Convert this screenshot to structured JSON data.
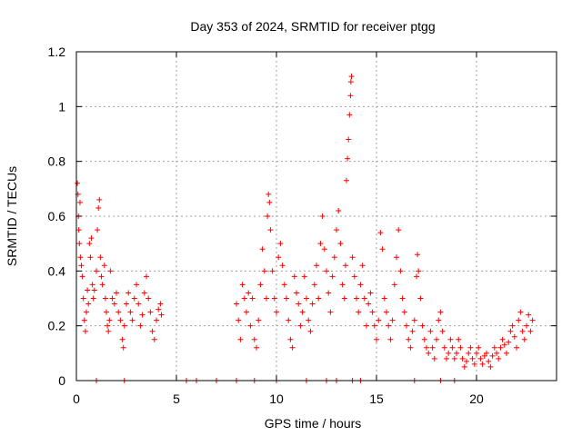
{
  "chart_data": {
    "type": "scatter",
    "title": "Day 353 of 2024, SRMTID for receiver ptgg",
    "xlabel": "GPS time / hours",
    "ylabel": "SRMTID / TECUs",
    "xlim": [
      0,
      24
    ],
    "ylim": [
      0,
      1.2
    ],
    "xticks": [
      0,
      5,
      10,
      15,
      20
    ],
    "yticks": [
      0,
      0.2,
      0.4,
      0.6,
      0.8,
      1,
      1.2
    ],
    "xtick_labels": [
      "0",
      "5",
      "10",
      "15",
      "20"
    ],
    "ytick_labels": [
      "0",
      "0.2",
      "0.4",
      "0.6",
      "0.8",
      "1",
      "1.2"
    ],
    "grid": true,
    "marker": "+",
    "color": "#ff0000",
    "series": [
      {
        "name": "SRMTID",
        "points": [
          [
            0.05,
            0.72
          ],
          [
            0.08,
            0.68
          ],
          [
            0.1,
            0.6
          ],
          [
            0.12,
            0.55
          ],
          [
            0.15,
            0.5
          ],
          [
            0.18,
            0.65
          ],
          [
            0.2,
            0.45
          ],
          [
            0.25,
            0.42
          ],
          [
            0.3,
            0.38
          ],
          [
            0.35,
            0.3
          ],
          [
            0.4,
            0.22
          ],
          [
            0.45,
            0.18
          ],
          [
            0.5,
            0.25
          ],
          [
            0.55,
            0.33
          ],
          [
            0.6,
            0.28
          ],
          [
            0.65,
            0.5
          ],
          [
            0.7,
            0.45
          ],
          [
            0.75,
            0.52
          ],
          [
            0.8,
            0.35
          ],
          [
            0.85,
            0.3
          ],
          [
            0.9,
            0.33
          ],
          [
            1.0,
            0.4
          ],
          [
            1.05,
            0.55
          ],
          [
            1.1,
            0.63
          ],
          [
            1.15,
            0.66
          ],
          [
            1.2,
            0.45
          ],
          [
            1.25,
            0.38
          ],
          [
            1.3,
            0.35
          ],
          [
            1.4,
            0.42
          ],
          [
            1.45,
            0.3
          ],
          [
            1.5,
            0.25
          ],
          [
            1.55,
            0.2
          ],
          [
            1.6,
            0.18
          ],
          [
            1.65,
            0.22
          ],
          [
            1.7,
            0.4
          ],
          [
            1.8,
            0.3
          ],
          [
            1.9,
            0.28
          ],
          [
            2.0,
            0.32
          ],
          [
            2.1,
            0.25
          ],
          [
            2.2,
            0.22
          ],
          [
            2.3,
            0.15
          ],
          [
            2.35,
            0.12
          ],
          [
            2.4,
            0.2
          ],
          [
            2.5,
            0.28
          ],
          [
            2.6,
            0.32
          ],
          [
            2.7,
            0.25
          ],
          [
            2.8,
            0.22
          ],
          [
            2.9,
            0.3
          ],
          [
            3.0,
            0.35
          ],
          [
            3.1,
            0.28
          ],
          [
            3.2,
            0.2
          ],
          [
            3.3,
            0.24
          ],
          [
            3.4,
            0.32
          ],
          [
            3.5,
            0.38
          ],
          [
            3.6,
            0.3
          ],
          [
            3.7,
            0.25
          ],
          [
            3.8,
            0.18
          ],
          [
            3.9,
            0.15
          ],
          [
            4.0,
            0.22
          ],
          [
            4.1,
            0.26
          ],
          [
            4.2,
            0.28
          ],
          [
            4.25,
            0.24
          ],
          [
            8.0,
            0.28
          ],
          [
            8.1,
            0.22
          ],
          [
            8.2,
            0.15
          ],
          [
            8.3,
            0.35
          ],
          [
            8.4,
            0.3
          ],
          [
            8.5,
            0.25
          ],
          [
            8.6,
            0.32
          ],
          [
            8.7,
            0.2
          ],
          [
            8.8,
            0.3
          ],
          [
            8.9,
            0.15
          ],
          [
            9.0,
            0.12
          ],
          [
            9.1,
            0.22
          ],
          [
            9.2,
            0.35
          ],
          [
            9.3,
            0.48
          ],
          [
            9.4,
            0.4
          ],
          [
            9.5,
            0.3
          ],
          [
            9.55,
            0.6
          ],
          [
            9.6,
            0.68
          ],
          [
            9.65,
            0.65
          ],
          [
            9.7,
            0.55
          ],
          [
            9.8,
            0.4
          ],
          [
            9.9,
            0.3
          ],
          [
            10.0,
            0.25
          ],
          [
            10.1,
            0.45
          ],
          [
            10.2,
            0.5
          ],
          [
            10.3,
            0.42
          ],
          [
            10.4,
            0.35
          ],
          [
            10.5,
            0.3
          ],
          [
            10.6,
            0.22
          ],
          [
            10.7,
            0.15
          ],
          [
            10.8,
            0.12
          ],
          [
            10.9,
            0.38
          ],
          [
            11.0,
            0.32
          ],
          [
            11.1,
            0.28
          ],
          [
            11.2,
            0.2
          ],
          [
            11.3,
            0.25
          ],
          [
            11.4,
            0.38
          ],
          [
            11.5,
            0.3
          ],
          [
            11.6,
            0.22
          ],
          [
            11.7,
            0.18
          ],
          [
            11.8,
            0.28
          ],
          [
            11.9,
            0.35
          ],
          [
            12.0,
            0.42
          ],
          [
            12.1,
            0.3
          ],
          [
            12.2,
            0.5
          ],
          [
            12.3,
            0.6
          ],
          [
            12.4,
            0.48
          ],
          [
            12.5,
            0.4
          ],
          [
            12.6,
            0.32
          ],
          [
            12.7,
            0.25
          ],
          [
            12.8,
            0.38
          ],
          [
            12.9,
            0.45
          ],
          [
            13.0,
            0.55
          ],
          [
            13.1,
            0.62
          ],
          [
            13.2,
            0.5
          ],
          [
            13.3,
            0.35
          ],
          [
            13.4,
            0.3
          ],
          [
            13.45,
            0.42
          ],
          [
            13.5,
            0.73
          ],
          [
            13.55,
            0.81
          ],
          [
            13.6,
            0.88
          ],
          [
            13.65,
            0.97
          ],
          [
            13.7,
            1.04
          ],
          [
            13.72,
            1.09
          ],
          [
            13.75,
            1.11
          ],
          [
            13.8,
            0.45
          ],
          [
            13.9,
            0.38
          ],
          [
            14.0,
            0.3
          ],
          [
            14.1,
            0.25
          ],
          [
            14.2,
            0.35
          ],
          [
            14.3,
            0.42
          ],
          [
            14.4,
            0.3
          ],
          [
            14.5,
            0.2
          ],
          [
            14.6,
            0.28
          ],
          [
            14.7,
            0.32
          ],
          [
            14.8,
            0.25
          ],
          [
            14.9,
            0.2
          ],
          [
            15.0,
            0.15
          ],
          [
            15.1,
            0.22
          ],
          [
            15.2,
            0.54
          ],
          [
            15.3,
            0.48
          ],
          [
            15.4,
            0.3
          ],
          [
            15.5,
            0.25
          ],
          [
            15.6,
            0.2
          ],
          [
            15.7,
            0.15
          ],
          [
            15.8,
            0.22
          ],
          [
            15.9,
            0.35
          ],
          [
            16.0,
            0.45
          ],
          [
            16.1,
            0.55
          ],
          [
            16.2,
            0.4
          ],
          [
            16.3,
            0.3
          ],
          [
            16.4,
            0.25
          ],
          [
            16.5,
            0.2
          ],
          [
            16.6,
            0.15
          ],
          [
            16.7,
            0.12
          ],
          [
            16.8,
            0.18
          ],
          [
            16.9,
            0.22
          ],
          [
            17.0,
            0.38
          ],
          [
            17.05,
            0.46
          ],
          [
            17.1,
            0.4
          ],
          [
            17.2,
            0.3
          ],
          [
            17.3,
            0.2
          ],
          [
            17.4,
            0.15
          ],
          [
            17.5,
            0.12
          ],
          [
            17.6,
            0.1
          ],
          [
            17.7,
            0.18
          ],
          [
            17.8,
            0.12
          ],
          [
            17.9,
            0.08
          ],
          [
            18.0,
            0.15
          ],
          [
            18.1,
            0.22
          ],
          [
            18.2,
            0.25
          ],
          [
            18.3,
            0.18
          ],
          [
            18.4,
            0.12
          ],
          [
            18.5,
            0.08
          ],
          [
            18.6,
            0.1
          ],
          [
            18.7,
            0.15
          ],
          [
            18.8,
            0.12
          ],
          [
            18.9,
            0.08
          ],
          [
            19.0,
            0.1
          ],
          [
            19.1,
            0.15
          ],
          [
            19.2,
            0.12
          ],
          [
            19.3,
            0.08
          ],
          [
            19.4,
            0.05
          ],
          [
            19.5,
            0.07
          ],
          [
            19.6,
            0.1
          ],
          [
            19.7,
            0.12
          ],
          [
            19.8,
            0.08
          ],
          [
            19.9,
            0.06
          ],
          [
            20.0,
            0.1
          ],
          [
            20.1,
            0.12
          ],
          [
            20.2,
            0.08
          ],
          [
            20.3,
            0.06
          ],
          [
            20.4,
            0.09
          ],
          [
            20.5,
            0.1
          ],
          [
            20.6,
            0.07
          ],
          [
            20.7,
            0.05
          ],
          [
            20.8,
            0.09
          ],
          [
            20.9,
            0.12
          ],
          [
            21.0,
            0.1
          ],
          [
            21.1,
            0.08
          ],
          [
            21.2,
            0.12
          ],
          [
            21.3,
            0.15
          ],
          [
            21.4,
            0.13
          ],
          [
            21.5,
            0.1
          ],
          [
            21.6,
            0.14
          ],
          [
            21.7,
            0.18
          ],
          [
            21.8,
            0.2
          ],
          [
            21.9,
            0.16
          ],
          [
            22.0,
            0.12
          ],
          [
            22.1,
            0.22
          ],
          [
            22.2,
            0.25
          ],
          [
            22.3,
            0.18
          ],
          [
            22.4,
            0.15
          ],
          [
            22.5,
            0.2
          ],
          [
            22.6,
            0.24
          ],
          [
            22.7,
            0.18
          ],
          [
            22.8,
            0.22
          ]
        ]
      }
    ],
    "zero_gaps": [
      1.0,
      2.4,
      5.5,
      6.0,
      7.0,
      8.0,
      8.9,
      10.0,
      11.5,
      12.5,
      13.0,
      13.8,
      14.2,
      16.9,
      18.2,
      18.9
    ]
  }
}
